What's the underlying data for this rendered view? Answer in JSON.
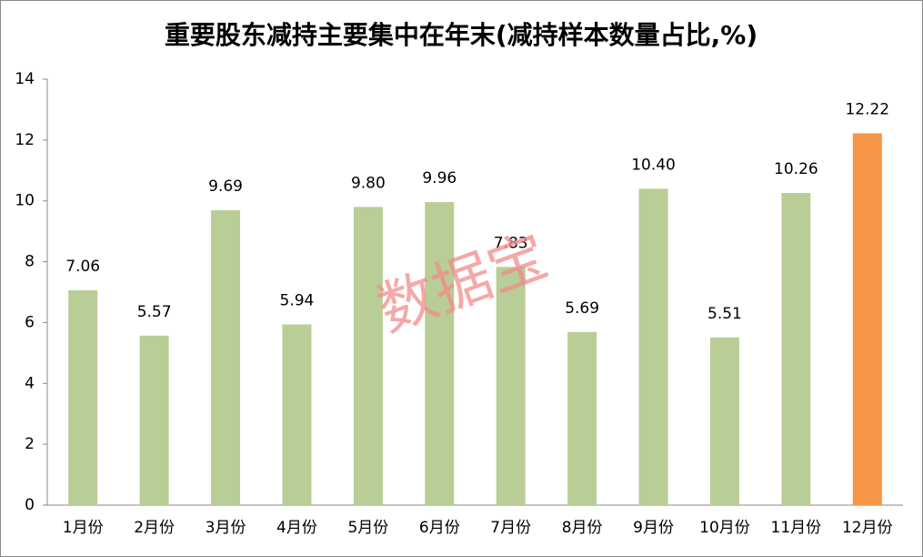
{
  "chart_data": {
    "type": "bar",
    "title": "重要股东减持主要集中在年末(减持样本数量占比,%)",
    "watermark": "数据宝",
    "categories": [
      "1月份",
      "2月份",
      "3月份",
      "4月份",
      "5月份",
      "6月份",
      "7月份",
      "8月份",
      "9月份",
      "10月份",
      "11月份",
      "12月份"
    ],
    "values": [
      7.06,
      5.57,
      9.69,
      5.94,
      9.8,
      9.96,
      7.83,
      5.69,
      10.4,
      5.51,
      10.26,
      12.22
    ],
    "value_labels": [
      "7.06",
      "5.57",
      "9.69",
      "5.94",
      "9.80",
      "9.96",
      "7.83",
      "5.69",
      "10.40",
      "5.51",
      "10.26",
      "12.22"
    ],
    "colors": [
      "#b9cd96",
      "#b9cd96",
      "#b9cd96",
      "#b9cd96",
      "#b9cd96",
      "#b9cd96",
      "#b9cd96",
      "#b9cd96",
      "#b9cd96",
      "#b9cd96",
      "#b9cd96",
      "#f79646"
    ],
    "ylim": [
      0,
      14
    ],
    "yticks": [
      0,
      2,
      4,
      6,
      8,
      10,
      12,
      14
    ],
    "grid": false
  }
}
